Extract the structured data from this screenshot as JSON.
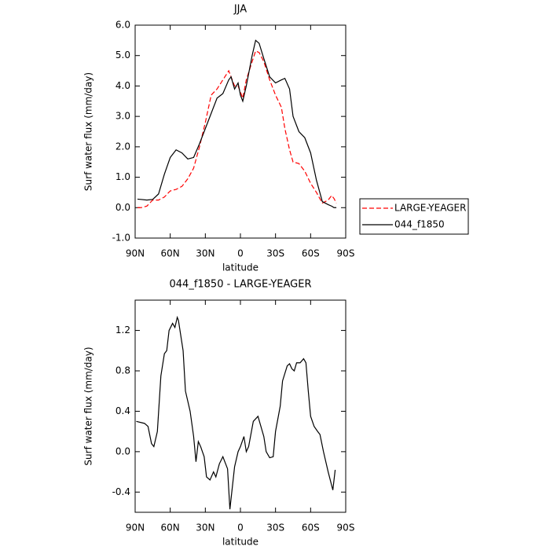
{
  "chart_data": [
    {
      "type": "line",
      "title": "JJA",
      "xlabel": "latitude",
      "ylabel": "Surf water flux (mm/day)",
      "x": [
        88,
        85,
        80,
        75,
        70,
        65,
        60,
        55,
        50,
        45,
        40,
        35,
        30,
        25,
        20,
        15,
        10,
        8,
        5,
        2,
        0,
        -2,
        -5,
        -10,
        -13,
        -16,
        -20,
        -25,
        -30,
        -35,
        -38,
        -42,
        -45,
        -50,
        -55,
        -60,
        -65,
        -70,
        -75,
        -78,
        -80,
        -82
      ],
      "series": [
        {
          "name": "LARGE-YEAGER",
          "color": "#ff0000",
          "dash": true,
          "values": [
            0.0,
            0.0,
            0.05,
            0.25,
            0.25,
            0.35,
            0.55,
            0.6,
            0.7,
            0.95,
            1.3,
            2.0,
            2.8,
            3.7,
            3.9,
            4.2,
            4.5,
            4.3,
            4.0,
            4.0,
            3.8,
            3.6,
            4.2,
            4.8,
            5.15,
            5.1,
            4.8,
            4.2,
            3.7,
            3.3,
            2.6,
            1.9,
            1.5,
            1.45,
            1.2,
            0.8,
            0.5,
            0.15,
            0.25,
            0.4,
            0.3,
            0.15
          ]
        },
        {
          "name": "044_f1850",
          "color": "#000000",
          "dash": false,
          "values": [
            0.28,
            0.27,
            0.25,
            0.27,
            0.45,
            1.1,
            1.65,
            1.9,
            1.8,
            1.6,
            1.65,
            2.1,
            2.6,
            3.1,
            3.6,
            3.75,
            4.2,
            4.3,
            3.9,
            4.1,
            3.7,
            3.5,
            4.0,
            5.0,
            5.5,
            5.4,
            4.9,
            4.3,
            4.1,
            4.2,
            4.25,
            3.9,
            3.0,
            2.5,
            2.3,
            1.8,
            0.9,
            0.2,
            0.1,
            0.05,
            0.0,
            0.0
          ]
        }
      ],
      "xlim": [
        90,
        -90
      ],
      "xticks": [
        {
          "value": 90,
          "label": "90N"
        },
        {
          "value": 60,
          "label": "60N"
        },
        {
          "value": 30,
          "label": "30N"
        },
        0,
        {
          "value": -30,
          "label": "30S"
        },
        {
          "value": -60,
          "label": "60S"
        },
        {
          "value": -90,
          "label": "90S"
        }
      ],
      "ylim": [
        -1,
        6
      ],
      "yticks": [
        {
          "value": -1,
          "label": "-1.0"
        },
        {
          "value": 0,
          "label": "0.0"
        },
        {
          "value": 1,
          "label": "1.0"
        },
        {
          "value": 2,
          "label": "2.0"
        },
        {
          "value": 3,
          "label": "3.0"
        },
        {
          "value": 4,
          "label": "4.0"
        },
        {
          "value": 5,
          "label": "5.0"
        },
        {
          "value": 6,
          "label": "6.0"
        }
      ],
      "legend": "right"
    },
    {
      "type": "line",
      "title": "044_f1850 - LARGE-YEAGER",
      "xlabel": "latitude",
      "ylabel": "Surf water flux (mm/day)",
      "x": [
        89,
        82,
        79,
        76,
        74,
        71,
        68,
        65,
        63,
        61,
        58,
        56,
        54,
        53,
        49,
        47,
        43,
        40,
        38,
        36,
        34,
        31,
        29,
        26,
        23,
        21,
        18,
        15,
        11,
        9,
        5,
        2,
        0,
        -3,
        -5,
        -7,
        -11,
        -15,
        -20,
        -22,
        -25,
        -28,
        -30,
        -34,
        -36,
        -40,
        -42,
        -44,
        -46,
        -48,
        -51,
        -54,
        -56,
        -58,
        -60,
        -63,
        -66,
        -68,
        -71,
        -73,
        -75,
        -79,
        -81
      ],
      "series": [
        {
          "name": "044_f1850 - LARGE-YEAGER",
          "color": "#000000",
          "dash": false,
          "values": [
            0.3,
            0.28,
            0.25,
            0.08,
            0.05,
            0.2,
            0.75,
            0.97,
            1.0,
            1.2,
            1.27,
            1.23,
            1.33,
            1.3,
            1.0,
            0.6,
            0.4,
            0.15,
            -0.1,
            0.1,
            0.05,
            -0.05,
            -0.25,
            -0.28,
            -0.2,
            -0.25,
            -0.12,
            -0.05,
            -0.17,
            -0.57,
            -0.15,
            0.0,
            0.05,
            0.15,
            0.0,
            0.05,
            0.3,
            0.35,
            0.15,
            0.0,
            -0.06,
            -0.05,
            0.2,
            0.45,
            0.7,
            0.85,
            0.87,
            0.82,
            0.8,
            0.88,
            0.88,
            0.92,
            0.88,
            0.6,
            0.35,
            0.25,
            0.2,
            0.17,
            0.0,
            -0.1,
            -0.2,
            -0.38,
            -0.18
          ]
        }
      ],
      "xlim": [
        90,
        -90
      ],
      "xticks": [
        {
          "value": 90,
          "label": "90N"
        },
        {
          "value": 60,
          "label": "60N"
        },
        {
          "value": 30,
          "label": "30N"
        },
        0,
        {
          "value": -30,
          "label": "30S"
        },
        {
          "value": -60,
          "label": "60S"
        },
        {
          "value": -90,
          "label": "90S"
        }
      ],
      "ylim": [
        -0.6,
        1.5
      ],
      "yticks": [
        -0.4,
        {
          "value": 0,
          "label": "0.0"
        },
        0.4,
        0.8,
        1.2
      ]
    }
  ]
}
